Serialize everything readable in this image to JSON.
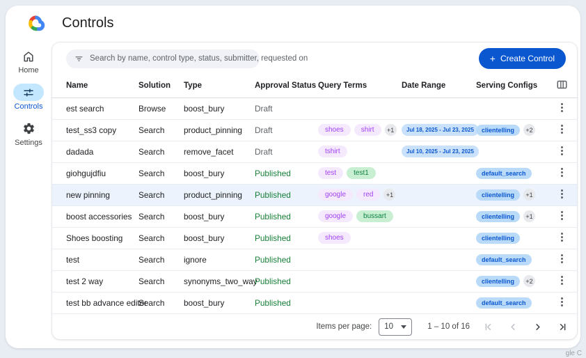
{
  "header": {
    "title": "Controls"
  },
  "sidebar": {
    "items": [
      {
        "label": "Home",
        "icon": "home-icon",
        "active": false
      },
      {
        "label": "Controls",
        "icon": "tune-icon",
        "active": true
      },
      {
        "label": "Settings",
        "icon": "settings-icon",
        "active": false
      }
    ]
  },
  "toolbar": {
    "search_placeholder": "Search by name, control type, status, submitter, requested on",
    "search_icon": "filter-list-icon",
    "create_button_icon": "+",
    "create_button_label": "Create Control"
  },
  "table": {
    "columns": [
      "Name",
      "Solution",
      "Type",
      "Approval Status",
      "Query Terms",
      "Date Range",
      "Serving Configs"
    ],
    "columns_icon": "view-columns-icon",
    "rows": [
      {
        "name": "est search",
        "solution": "Browse",
        "type": "boost_bury",
        "status": "Draft",
        "query_terms": [],
        "date_range": null,
        "serving_configs": [],
        "highlighted": false
      },
      {
        "name": "test_ss3 copy",
        "solution": "Search",
        "type": "product_pinning",
        "status": "Draft",
        "query_terms": [
          {
            "label": "shoes",
            "color": "purple"
          },
          {
            "label": "shirt",
            "color": "purple"
          }
        ],
        "more_terms": "+1",
        "date_range": "Jul 18, 2025 - Jul 23, 2025",
        "serving_configs": [
          "clientelling"
        ],
        "more_configs": "+2",
        "highlighted": false
      },
      {
        "name": "dadada",
        "solution": "Search",
        "type": "remove_facet",
        "status": "Draft",
        "query_terms": [
          {
            "label": "tshirt",
            "color": "purple"
          }
        ],
        "date_range": "Jul 10, 2025 - Jul 23, 2025",
        "serving_configs": [],
        "highlighted": false
      },
      {
        "name": "giohgujdfiu",
        "solution": "Search",
        "type": "boost_bury",
        "status": "Published",
        "query_terms": [
          {
            "label": "test",
            "color": "purple"
          },
          {
            "label": "test1",
            "color": "green"
          }
        ],
        "date_range": null,
        "serving_configs": [
          "default_search"
        ],
        "highlighted": false
      },
      {
        "name": "new pinning",
        "solution": "Search",
        "type": "product_pinning",
        "status": "Published",
        "query_terms": [
          {
            "label": "google",
            "color": "purple"
          },
          {
            "label": "red",
            "color": "purple"
          }
        ],
        "more_terms": "+1",
        "date_range": null,
        "serving_configs": [
          "clientelling"
        ],
        "more_configs": "+1",
        "highlighted": true
      },
      {
        "name": "boost accessories",
        "solution": "Search",
        "type": "boost_bury",
        "status": "Published",
        "query_terms": [
          {
            "label": "google",
            "color": "purple"
          },
          {
            "label": "bussart",
            "color": "green"
          }
        ],
        "date_range": null,
        "serving_configs": [
          "clientelling"
        ],
        "more_configs": "+1",
        "highlighted": false
      },
      {
        "name": "Shoes boosting",
        "solution": "Search",
        "type": "boost_bury",
        "status": "Published",
        "query_terms": [
          {
            "label": "shoes",
            "color": "purple"
          }
        ],
        "date_range": null,
        "serving_configs": [
          "clientelling"
        ],
        "highlighted": false
      },
      {
        "name": "test",
        "solution": "Search",
        "type": "ignore",
        "status": "Published",
        "query_terms": [],
        "date_range": null,
        "serving_configs": [
          "default_search"
        ],
        "highlighted": false
      },
      {
        "name": "test 2 way",
        "solution": "Search",
        "type": "synonyms_two_way",
        "status": "Published",
        "query_terms": [],
        "date_range": null,
        "serving_configs": [
          "clientelling"
        ],
        "more_configs": "+2",
        "highlighted": false
      },
      {
        "name": "test bb advance editor",
        "solution": "Search",
        "type": "boost_bury",
        "status": "Published",
        "query_terms": [],
        "date_range": null,
        "serving_configs": [
          "default_search"
        ],
        "highlighted": false
      }
    ]
  },
  "pagination": {
    "items_per_page_label": "Items per page:",
    "items_per_page_value": "10",
    "range": "1 – 10 of 16",
    "icons": [
      "first-page-icon",
      "chevron-left-icon",
      "chevron-right-icon",
      "last-page-icon"
    ]
  },
  "watermark": "gle C",
  "colors": {
    "accent_blue": "#0b57d0",
    "active_pill": "#c2e7ff",
    "published_green": "#188038",
    "draft_gray": "#5f6368",
    "query_term_purple": "#a142f4",
    "query_term_green": "#0d8043",
    "pill_blue_bg": "#c9e1fb"
  }
}
